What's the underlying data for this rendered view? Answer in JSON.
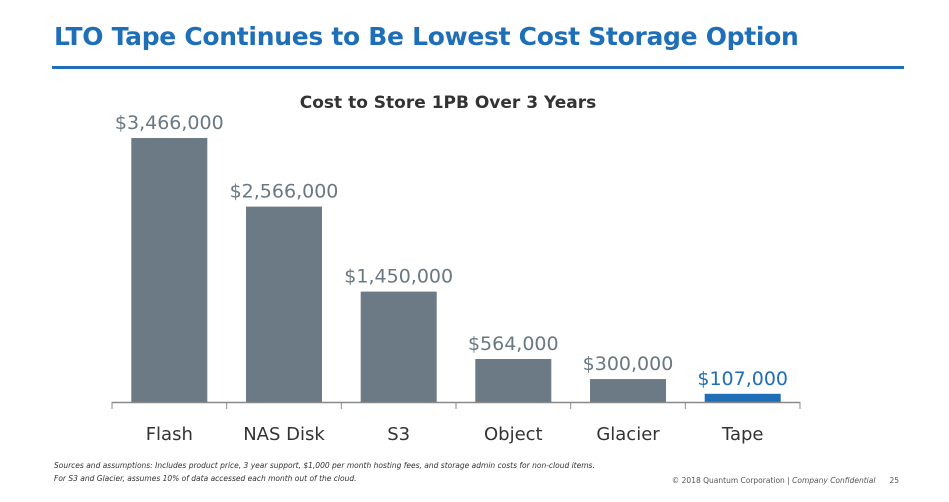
{
  "slide": {
    "title": "LTO Tape Continues to Be Lowest Cost Storage Option",
    "notes_line1": "Sources and assumptions:   Includes product price, 3 year support, $1,000 per month hosting fees, and storage admin costs for non-cloud items.",
    "notes_line2": "For S3 and Glacier, assumes 10% of data accessed each month out of the cloud.",
    "footer_copyright": "© 2018 Quantum Corporation",
    "footer_separator": " | ",
    "footer_confidential": "Company Confidential",
    "page_number": "25"
  },
  "colors": {
    "title_blue": "#1f6fb8",
    "bar_gray": "#6b7a84",
    "bar_highlight": "#1f6fb8",
    "axis": "#888888"
  },
  "chart_data": {
    "type": "bar",
    "title": "Cost to Store 1PB Over 3 Years",
    "xlabel": "",
    "ylabel": "",
    "categories": [
      "Flash",
      "NAS Disk",
      "S3",
      "Object",
      "Glacier",
      "Tape"
    ],
    "values": [
      3466000,
      2566000,
      1450000,
      564000,
      300000,
      107000
    ],
    "value_labels": [
      "$3,466,000",
      "$2,566,000",
      "$1,450,000",
      "$564,000",
      "$300,000",
      "$107,000"
    ],
    "highlight_index": 5,
    "ylim": [
      0,
      3466000
    ],
    "grid": false,
    "legend": "none"
  }
}
